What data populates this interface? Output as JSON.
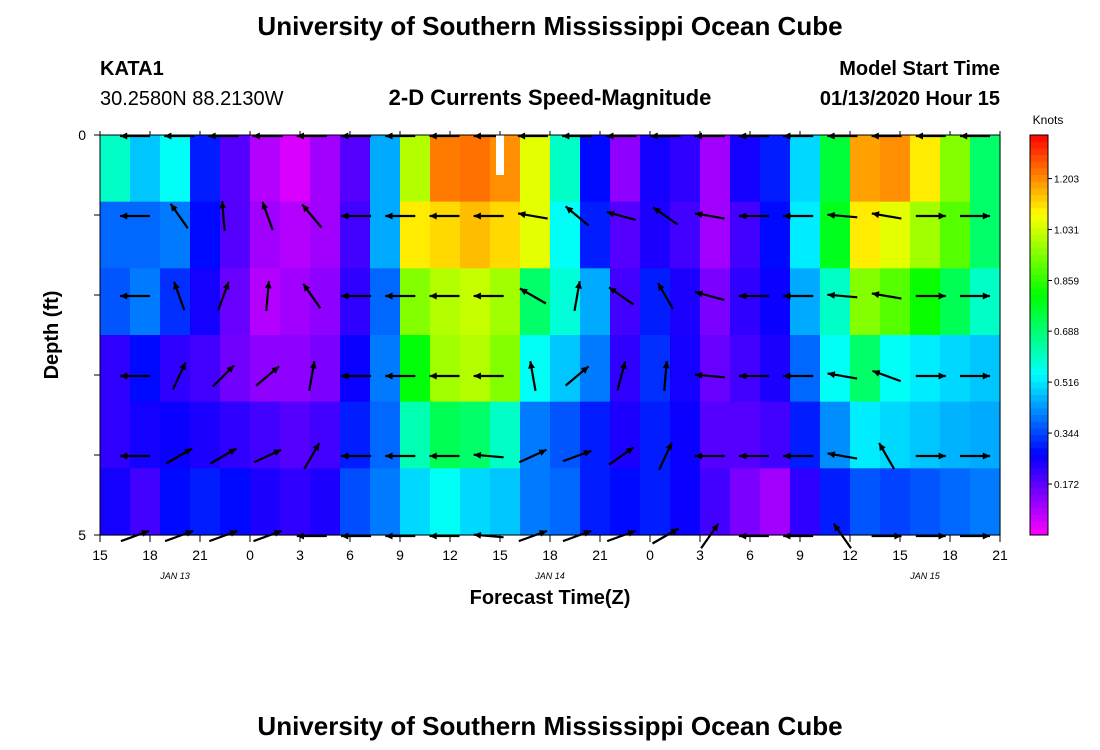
{
  "header": {
    "title": "University of Southern Mississippi Ocean Cube",
    "station": "KATA1",
    "coords": "30.2580N 88.2130W",
    "subtitle": "2-D Currents Speed-Magnitude",
    "model_label": "Model Start Time",
    "model_time": "01/13/2020 Hour 15"
  },
  "footer": {
    "title": "University of Southern Mississippi Ocean Cube"
  },
  "chart_data": {
    "type": "heatmap",
    "title": "2-D Currents Speed-Magnitude",
    "xlabel": "Forecast Time(Z)",
    "ylabel": "Depth (ft)",
    "x_tick_labels": [
      "15",
      "18",
      "21",
      "0",
      "3",
      "6",
      "9",
      "12",
      "15",
      "18",
      "21",
      "0",
      "3",
      "6",
      "9",
      "12",
      "15",
      "18",
      "21"
    ],
    "date_labels": [
      {
        "label": "JAN 13",
        "at_tick": 1.5
      },
      {
        "label": "JAN 14",
        "at_tick": 9
      },
      {
        "label": "JAN 15",
        "at_tick": 16.5
      }
    ],
    "y_tick_labels": [
      "0",
      "5"
    ],
    "ylim": [
      0,
      5
    ],
    "colorbar": {
      "title": "Knots",
      "min": 0.0,
      "max": 1.35,
      "ticks": [
        "1.203",
        "1.031",
        "0.859",
        "0.688",
        "0.516",
        "0.344",
        "0.172"
      ]
    },
    "speed_rows": [
      [
        0.6,
        0.48,
        0.55,
        0.3,
        0.18,
        0.08,
        0.04,
        0.1,
        0.18,
        0.45,
        1.0,
        1.22,
        1.23,
        1.2,
        1.05,
        0.6,
        0.28,
        0.12,
        0.25,
        0.22,
        0.1,
        0.25,
        0.3,
        0.5,
        0.75,
        1.18,
        1.2,
        1.1,
        0.95,
        0.7
      ],
      [
        0.38,
        0.38,
        0.4,
        0.28,
        0.18,
        0.1,
        0.08,
        0.1,
        0.2,
        0.45,
        1.1,
        1.12,
        1.15,
        1.12,
        1.05,
        0.55,
        0.3,
        0.18,
        0.24,
        0.2,
        0.1,
        0.2,
        0.28,
        0.52,
        0.78,
        1.1,
        1.05,
        0.98,
        0.9,
        0.7
      ],
      [
        0.36,
        0.4,
        0.32,
        0.25,
        0.16,
        0.08,
        0.1,
        0.12,
        0.22,
        0.38,
        0.95,
        1.0,
        1.02,
        0.98,
        0.7,
        0.58,
        0.45,
        0.2,
        0.3,
        0.24,
        0.14,
        0.22,
        0.26,
        0.45,
        0.6,
        0.95,
        0.9,
        0.82,
        0.72,
        0.6
      ],
      [
        0.22,
        0.28,
        0.22,
        0.2,
        0.15,
        0.12,
        0.12,
        0.14,
        0.26,
        0.4,
        0.8,
        0.98,
        1.0,
        0.95,
        0.55,
        0.48,
        0.4,
        0.22,
        0.32,
        0.25,
        0.16,
        0.2,
        0.24,
        0.38,
        0.55,
        0.7,
        0.55,
        0.52,
        0.5,
        0.48
      ],
      [
        0.22,
        0.25,
        0.26,
        0.24,
        0.22,
        0.2,
        0.18,
        0.2,
        0.3,
        0.38,
        0.62,
        0.72,
        0.7,
        0.6,
        0.4,
        0.36,
        0.3,
        0.24,
        0.3,
        0.26,
        0.18,
        0.18,
        0.2,
        0.3,
        0.42,
        0.52,
        0.5,
        0.48,
        0.46,
        0.45
      ],
      [
        0.25,
        0.2,
        0.28,
        0.3,
        0.28,
        0.24,
        0.22,
        0.24,
        0.35,
        0.4,
        0.5,
        0.55,
        0.5,
        0.48,
        0.4,
        0.38,
        0.3,
        0.28,
        0.3,
        0.26,
        0.2,
        0.14,
        0.1,
        0.22,
        0.3,
        0.36,
        0.34,
        0.36,
        0.38,
        0.4
      ]
    ],
    "arrow_rows": [
      [
        180,
        180,
        180,
        180,
        180,
        180,
        180,
        180,
        180,
        180,
        180,
        180,
        180,
        180,
        180,
        180,
        180,
        180,
        180,
        180
      ],
      [
        180,
        125,
        95,
        110,
        130,
        180,
        180,
        180,
        180,
        170,
        140,
        165,
        145,
        170,
        180,
        180,
        175,
        170,
        0,
        0
      ],
      [
        180,
        110,
        70,
        85,
        125,
        180,
        180,
        180,
        180,
        150,
        80,
        145,
        120,
        165,
        180,
        180,
        175,
        170,
        0,
        0
      ],
      [
        180,
        65,
        45,
        40,
        80,
        180,
        180,
        180,
        180,
        100,
        40,
        75,
        85,
        175,
        180,
        180,
        170,
        160,
        0,
        0
      ],
      [
        180,
        30,
        30,
        25,
        60,
        180,
        180,
        180,
        175,
        25,
        20,
        35,
        65,
        180,
        180,
        180,
        170,
        120,
        0,
        0
      ],
      [
        20,
        20,
        20,
        20,
        180,
        180,
        180,
        180,
        175,
        20,
        20,
        20,
        30,
        55,
        180,
        180,
        125,
        0,
        0,
        0
      ]
    ]
  }
}
